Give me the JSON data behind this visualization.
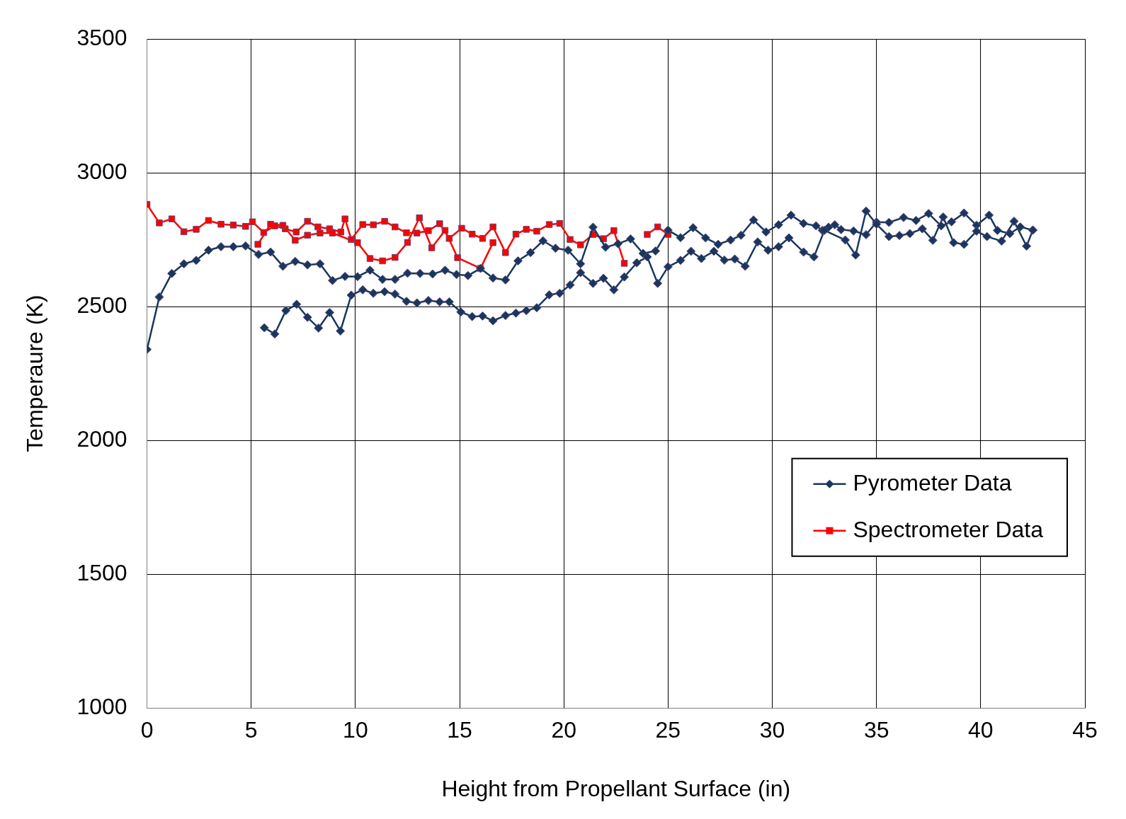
{
  "chart_data": {
    "type": "line",
    "xlabel": "Height from Propellant Surface (in)",
    "ylabel": "Temperaure (K)",
    "xlim": [
      0,
      45
    ],
    "xticks": [
      0,
      5,
      10,
      15,
      20,
      25,
      30,
      35,
      40,
      45
    ],
    "ylim": [
      1000,
      3500
    ],
    "yticks": [
      1000,
      1500,
      2000,
      2500,
      3000,
      3500
    ],
    "grid": true,
    "legend": "right",
    "line_style": "solid",
    "series": [
      {
        "name": "Pyrometer Data",
        "color": "#17375e",
        "marker": "diamond",
        "x": [
          0,
          0.59,
          1.19,
          1.77,
          2.36,
          2.95,
          3.55,
          4.14,
          4.73,
          5.35,
          5.93,
          6.52,
          7.11,
          7.7,
          8.3,
          8.9,
          9.5,
          10.1,
          10.7,
          11.3,
          11.9,
          12.5,
          13.1,
          13.7,
          14.3,
          14.85,
          15.4,
          16.0,
          16.6,
          17.2,
          17.8,
          18.4,
          19.0,
          19.6,
          20.2,
          20.8,
          21.4,
          22.0,
          22.6,
          23.2,
          23.8,
          24.4,
          25.0,
          25.6,
          26.2,
          26.8,
          27.4,
          28.0,
          28.5,
          29.1,
          29.7,
          30.3,
          30.9,
          31.5,
          32.1,
          32.4,
          32.7,
          33.0,
          33.3,
          33.9,
          34.5,
          35.0,
          35.6,
          36.3,
          36.9,
          37.5,
          38.1,
          38.6,
          39.2,
          39.8,
          40.4,
          40.8,
          41.4,
          41.9,
          42.5,
          null,
          5.63,
          6.13,
          6.66,
          7.18,
          7.7,
          8.23,
          8.76,
          9.28,
          9.8,
          10.35,
          10.86,
          11.4,
          11.9,
          12.45,
          12.95,
          13.5,
          14.04,
          14.5,
          15.06,
          15.6,
          16.1,
          16.6,
          17.2,
          17.7,
          18.2,
          18.7,
          19.3,
          19.8,
          20.3,
          20.8,
          21.4,
          21.9,
          22.4,
          22.9,
          23.5,
          24.0,
          24.5,
          25.0,
          25.6,
          26.1,
          26.6,
          27.2,
          27.7,
          28.2,
          28.7,
          29.3,
          29.8,
          30.3,
          30.8,
          31.5,
          32.0,
          32.5,
          33.5,
          34.0,
          34.5,
          35.0,
          35.6,
          36.1,
          36.6,
          37.2,
          37.7,
          38.2,
          38.7,
          39.2,
          39.8,
          40.3,
          41.0,
          41.6,
          42.2,
          42.5
        ],
        "values": [
          2340,
          2536,
          2624,
          2660,
          2673,
          2711,
          2724,
          2724,
          2727,
          2695,
          2704,
          2651,
          2669,
          2656,
          2660,
          2598,
          2613,
          2612,
          2636,
          2602,
          2602,
          2625,
          2624,
          2622,
          2636,
          2620,
          2616,
          2643,
          2607,
          2600,
          2671,
          2702,
          2746,
          2718,
          2711,
          2660,
          2797,
          2722,
          2735,
          2753,
          2699,
          2708,
          2786,
          2758,
          2795,
          2757,
          2733,
          2749,
          2767,
          2824,
          2779,
          2806,
          2842,
          2811,
          2802,
          2785,
          2797,
          2806,
          2788,
          2783,
          2769,
          2816,
          2815,
          2833,
          2822,
          2848,
          2802,
          2817,
          2850,
          2804,
          2842,
          2785,
          2773,
          2798,
          2786,
          null,
          2421,
          2398,
          2485,
          2509,
          2460,
          2420,
          2478,
          2409,
          2543,
          2563,
          2550,
          2556,
          2547,
          2520,
          2514,
          2523,
          2518,
          2518,
          2480,
          2463,
          2465,
          2447,
          2467,
          2476,
          2485,
          2496,
          2544,
          2550,
          2581,
          2627,
          2587,
          2606,
          2563,
          2611,
          2664,
          2686,
          2587,
          2649,
          2673,
          2707,
          2680,
          2707,
          2674,
          2678,
          2651,
          2742,
          2711,
          2724,
          2757,
          2704,
          2686,
          2785,
          2749,
          2693,
          2857,
          2808,
          2762,
          2766,
          2773,
          2791,
          2748,
          2835,
          2739,
          2733,
          2782,
          2762,
          2745,
          2819,
          2726,
          2786
        ]
      },
      {
        "name": "Spectrometer Data",
        "color": "#ff0000",
        "marker": "square",
        "x": [
          0,
          0.59,
          1.19,
          1.77,
          2.36,
          2.95,
          3.55,
          4.14,
          4.73,
          5.06,
          5.6,
          6.13,
          6.63,
          7.16,
          7.7,
          8.2,
          8.76,
          9.3,
          9.5,
          9.8,
          10.35,
          10.86,
          11.4,
          11.9,
          12.45,
          12.95,
          13.5,
          14.04,
          14.5,
          15.1,
          15.6,
          16.1,
          16.6,
          17.2,
          17.7,
          18.2,
          18.7,
          19.3,
          19.8,
          20.3,
          20.8,
          21.4,
          21.9,
          22.4,
          22.9,
          null,
          5.32,
          5.93,
          6.52,
          7.11,
          7.7,
          8.3,
          8.9,
          10.1,
          10.7,
          11.3,
          11.9,
          12.5,
          13.07,
          13.66,
          14.3,
          14.9,
          16.0,
          16.6,
          null,
          24.0,
          24.5,
          25.0
        ],
        "values": [
          2882,
          2813,
          2828,
          2780,
          2789,
          2822,
          2808,
          2805,
          2800,
          2817,
          2777,
          2802,
          2791,
          2779,
          2819,
          2798,
          2791,
          2779,
          2828,
          2751,
          2807,
          2806,
          2819,
          2798,
          2776,
          2775,
          2784,
          2810,
          2755,
          2793,
          2771,
          2755,
          2798,
          2702,
          2771,
          2789,
          2782,
          2807,
          2811,
          2751,
          2731,
          2770,
          2754,
          2784,
          2662,
          null,
          2733,
          2808,
          2804,
          2748,
          2767,
          2775,
          2775,
          2739,
          2680,
          2671,
          2684,
          2740,
          2832,
          2720,
          2785,
          2683,
          2643,
          2739,
          null,
          2770,
          2798,
          2770
        ]
      }
    ]
  }
}
